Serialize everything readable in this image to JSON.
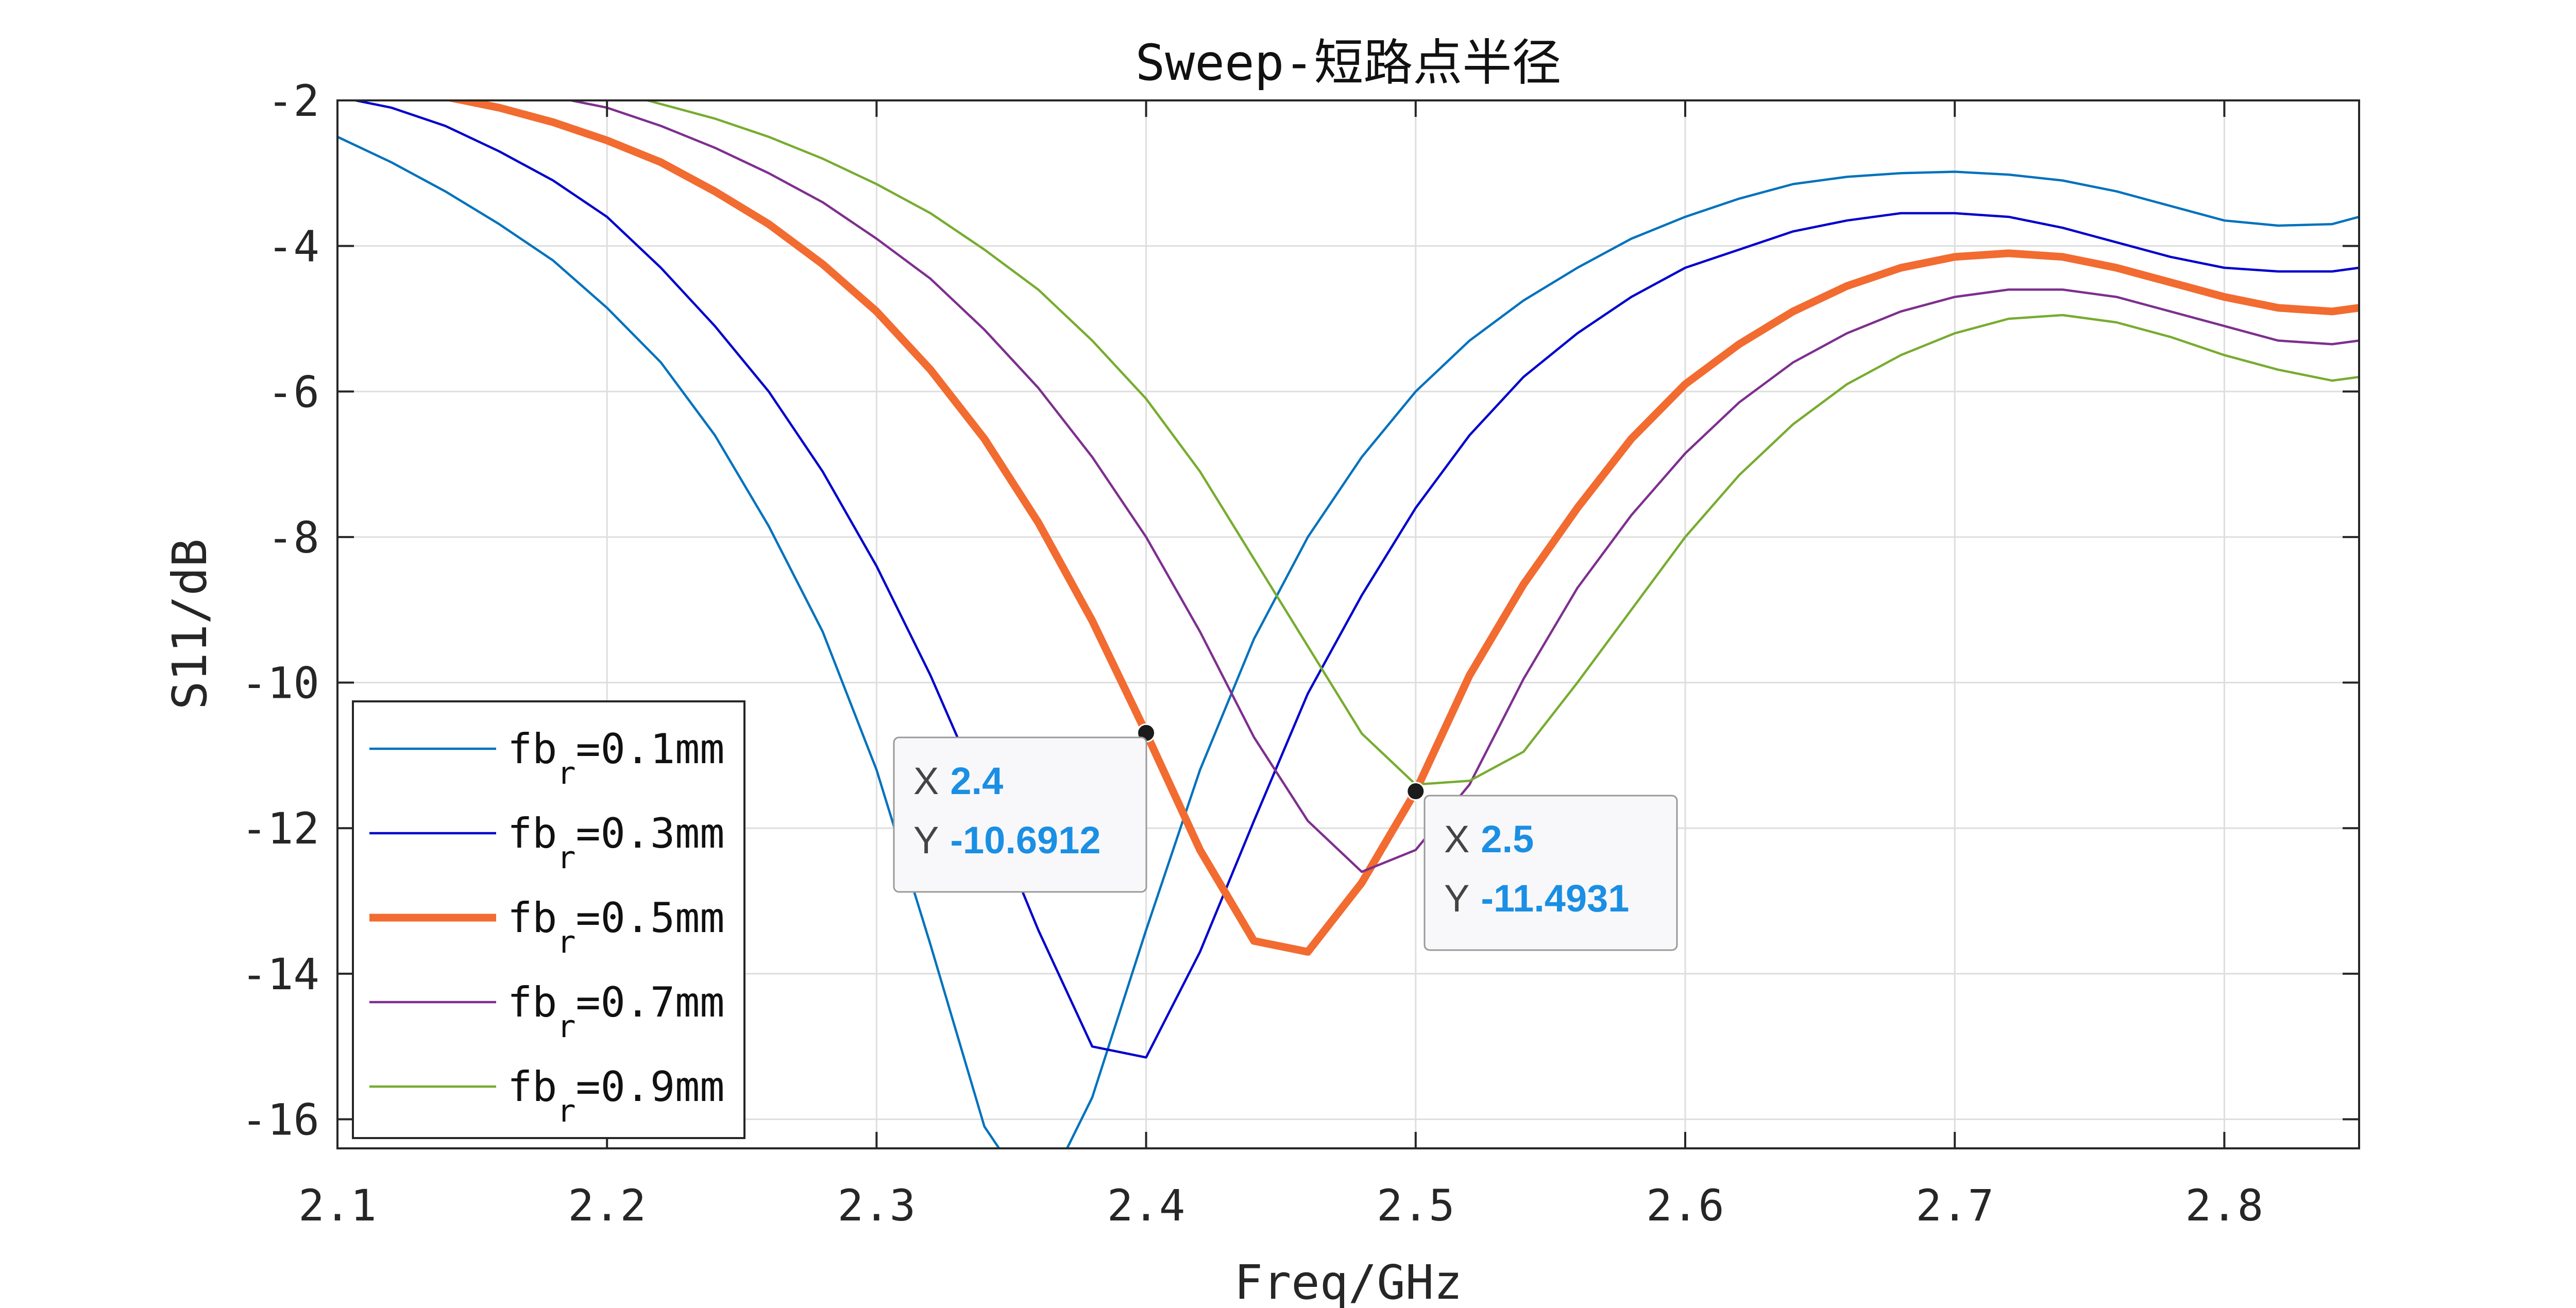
{
  "chart_data": {
    "type": "line",
    "title": "Sweep-短路点半径",
    "xlabel": "Freq/GHz",
    "ylabel": "S11/dB",
    "xlim": [
      2.1,
      2.85
    ],
    "ylim": [
      -16.4,
      -2
    ],
    "xticks": [
      "2.1",
      "2.2",
      "2.3",
      "2.4",
      "2.5",
      "2.6",
      "2.7",
      "2.8"
    ],
    "yticks": [
      "-2",
      "-4",
      "-6",
      "-8",
      "-10",
      "-12",
      "-14",
      "-16"
    ],
    "grid": true,
    "legend_position": "bottom-left",
    "series": [
      {
        "name_prefix": "fb",
        "name_sub": "r",
        "name_suffix": "=0.1mm",
        "color": "#0072BD",
        "x": [
          2.1,
          2.12,
          2.14,
          2.16,
          2.18,
          2.2,
          2.22,
          2.24,
          2.26,
          2.28,
          2.3,
          2.32,
          2.34,
          2.36,
          2.38,
          2.4,
          2.42,
          2.44,
          2.46,
          2.48,
          2.5,
          2.52,
          2.54,
          2.56,
          2.58,
          2.6,
          2.62,
          2.64,
          2.66,
          2.68,
          2.7,
          2.72,
          2.74,
          2.76,
          2.78,
          2.8,
          2.82,
          2.84,
          2.85
        ],
        "y": [
          -2.5,
          -2.85,
          -3.25,
          -3.7,
          -4.2,
          -4.85,
          -5.6,
          -6.6,
          -7.85,
          -9.3,
          -11.2,
          -13.6,
          -16.1,
          -17.2,
          -15.7,
          -13.4,
          -11.2,
          -9.4,
          -8.0,
          -6.9,
          -6.0,
          -5.3,
          -4.75,
          -4.3,
          -3.9,
          -3.6,
          -3.35,
          -3.15,
          -3.05,
          -3.0,
          -2.98,
          -3.02,
          -3.1,
          -3.25,
          -3.45,
          -3.65,
          -3.72,
          -3.7,
          -3.6
        ]
      },
      {
        "name_prefix": "fb",
        "name_sub": "r",
        "name_suffix": "=0.3mm",
        "color": "#0000CD",
        "x": [
          2.1,
          2.12,
          2.14,
          2.16,
          2.18,
          2.2,
          2.22,
          2.24,
          2.26,
          2.28,
          2.3,
          2.32,
          2.34,
          2.36,
          2.38,
          2.4,
          2.42,
          2.44,
          2.46,
          2.48,
          2.5,
          2.52,
          2.54,
          2.56,
          2.58,
          2.6,
          2.62,
          2.64,
          2.66,
          2.68,
          2.7,
          2.72,
          2.74,
          2.76,
          2.78,
          2.8,
          2.82,
          2.84,
          2.85
        ],
        "y": [
          -1.95,
          -2.1,
          -2.35,
          -2.7,
          -3.1,
          -3.6,
          -4.3,
          -5.1,
          -6.0,
          -7.1,
          -8.4,
          -9.9,
          -11.6,
          -13.4,
          -15.0,
          -15.15,
          -13.7,
          -11.9,
          -10.15,
          -8.8,
          -7.6,
          -6.6,
          -5.8,
          -5.2,
          -4.7,
          -4.3,
          -4.05,
          -3.8,
          -3.65,
          -3.55,
          -3.55,
          -3.6,
          -3.75,
          -3.95,
          -4.15,
          -4.3,
          -4.35,
          -4.35,
          -4.3
        ]
      },
      {
        "name_prefix": "fb",
        "name_sub": "r",
        "name_suffix": "=0.5mm",
        "color": "#F26B30",
        "x": [
          2.14,
          2.16,
          2.18,
          2.2,
          2.22,
          2.24,
          2.26,
          2.28,
          2.3,
          2.32,
          2.34,
          2.36,
          2.38,
          2.4,
          2.42,
          2.44,
          2.46,
          2.48,
          2.5,
          2.52,
          2.54,
          2.56,
          2.58,
          2.6,
          2.62,
          2.64,
          2.66,
          2.68,
          2.7,
          2.72,
          2.74,
          2.76,
          2.78,
          2.8,
          2.82,
          2.84,
          2.85
        ],
        "y": [
          -1.95,
          -2.1,
          -2.3,
          -2.55,
          -2.85,
          -3.25,
          -3.7,
          -4.25,
          -4.9,
          -5.7,
          -6.65,
          -7.8,
          -9.15,
          -10.6912,
          -12.3,
          -13.55,
          -13.7,
          -12.75,
          -11.4931,
          -9.9,
          -8.65,
          -7.6,
          -6.65,
          -5.9,
          -5.35,
          -4.9,
          -4.55,
          -4.3,
          -4.15,
          -4.1,
          -4.15,
          -4.3,
          -4.5,
          -4.7,
          -4.85,
          -4.9,
          -4.85
        ]
      },
      {
        "name_prefix": "fb",
        "name_sub": "r",
        "name_suffix": "=0.7mm",
        "color": "#7E2F8E",
        "x": [
          2.18,
          2.2,
          2.22,
          2.24,
          2.26,
          2.28,
          2.3,
          2.32,
          2.34,
          2.36,
          2.38,
          2.4,
          2.42,
          2.44,
          2.46,
          2.48,
          2.5,
          2.52,
          2.54,
          2.56,
          2.58,
          2.6,
          2.62,
          2.64,
          2.66,
          2.68,
          2.7,
          2.72,
          2.74,
          2.76,
          2.78,
          2.8,
          2.82,
          2.84,
          2.85
        ],
        "y": [
          -1.95,
          -2.1,
          -2.35,
          -2.65,
          -3.0,
          -3.4,
          -3.9,
          -4.45,
          -5.15,
          -5.95,
          -6.9,
          -8.0,
          -9.3,
          -10.75,
          -11.9,
          -12.6,
          -12.3,
          -11.4,
          -9.95,
          -8.7,
          -7.7,
          -6.85,
          -6.15,
          -5.6,
          -5.2,
          -4.9,
          -4.7,
          -4.6,
          -4.6,
          -4.7,
          -4.9,
          -5.1,
          -5.3,
          -5.35,
          -5.3
        ]
      },
      {
        "name_prefix": "fb",
        "name_sub": "r",
        "name_suffix": "=0.9mm",
        "color": "#77AC30",
        "x": [
          2.21,
          2.24,
          2.26,
          2.28,
          2.3,
          2.32,
          2.34,
          2.36,
          2.38,
          2.4,
          2.42,
          2.44,
          2.46,
          2.48,
          2.5,
          2.52,
          2.54,
          2.56,
          2.58,
          2.6,
          2.62,
          2.64,
          2.66,
          2.68,
          2.7,
          2.72,
          2.74,
          2.76,
          2.78,
          2.8,
          2.82,
          2.84,
          2.85
        ],
        "y": [
          -1.95,
          -2.25,
          -2.5,
          -2.8,
          -3.15,
          -3.55,
          -4.05,
          -4.6,
          -5.3,
          -6.1,
          -7.1,
          -8.3,
          -9.5,
          -10.7,
          -11.4,
          -11.35,
          -10.95,
          -10.0,
          -9.0,
          -8.0,
          -7.15,
          -6.45,
          -5.9,
          -5.5,
          -5.2,
          -5.0,
          -4.95,
          -5.05,
          -5.25,
          -5.5,
          -5.7,
          -5.85,
          -5.8
        ]
      }
    ],
    "datatips": [
      {
        "x": 2.4,
        "y": -10.6912,
        "x_label": "X",
        "y_label": "Y",
        "x_text": "2.4",
        "y_text": "-10.6912"
      },
      {
        "x": 2.5,
        "y": -11.4931,
        "x_label": "X",
        "y_label": "Y",
        "x_text": "2.5",
        "y_text": "-11.4931"
      }
    ]
  }
}
